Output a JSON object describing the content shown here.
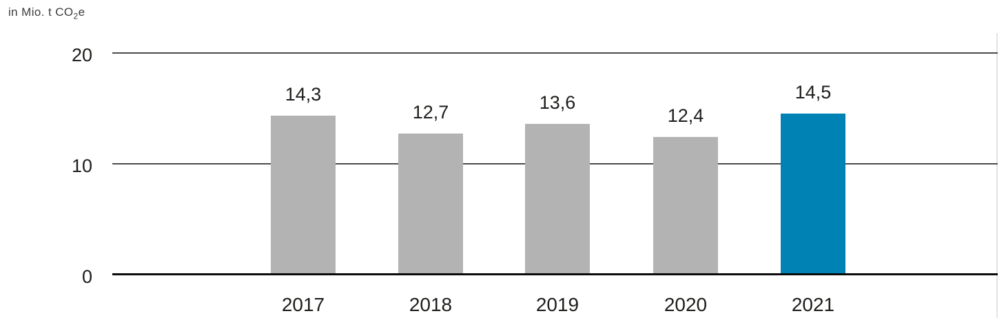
{
  "unit_label": {
    "prefix": "in Mio. t CO",
    "subscript": "2",
    "suffix": "e"
  },
  "colors": {
    "background": "#ffffff",
    "bar_default": "#b3b3b3",
    "bar_highlight": "#0082b4",
    "axis_line": "#0a0a0a",
    "gridline": "#4a4a4a",
    "label_text": "#1d1d1b",
    "right_edge_line": "#e3e3e3"
  },
  "chart_data": {
    "type": "bar",
    "title": "",
    "ylabel": "in Mio. t CO2e",
    "xlabel": "",
    "categories": [
      "2017",
      "2018",
      "2019",
      "2020",
      "2021"
    ],
    "values": [
      14.3,
      12.7,
      13.6,
      12.4,
      14.5
    ],
    "value_labels": [
      "14,3",
      "12,7",
      "13,6",
      "12,4",
      "14,5"
    ],
    "highlight_index": 4,
    "highlight_category": "2021",
    "ylim": [
      0,
      20
    ],
    "yticks": [
      0,
      10,
      20
    ],
    "ytick_labels": [
      "0",
      "10",
      "20"
    ],
    "grid": true,
    "legend_position": "none"
  }
}
